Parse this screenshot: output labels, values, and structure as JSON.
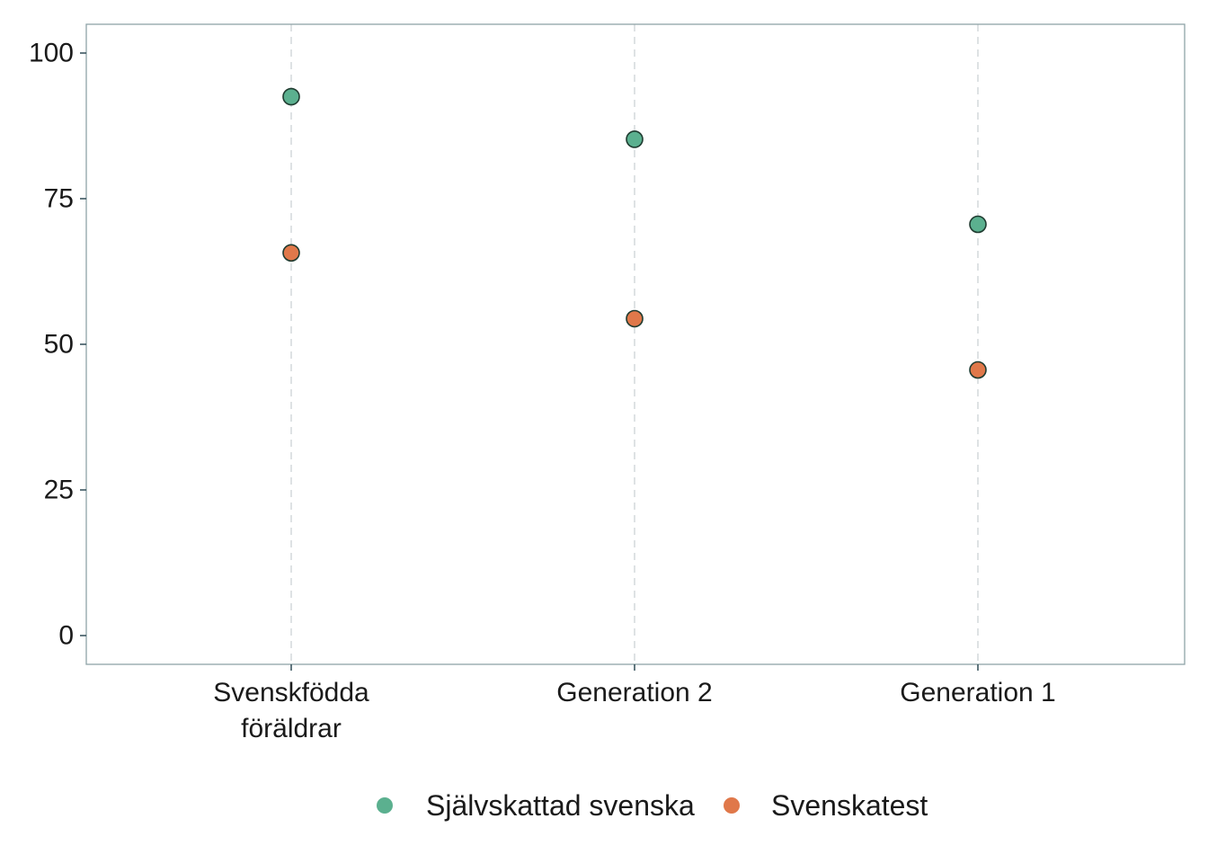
{
  "chart_data": {
    "type": "scatter",
    "title": "",
    "xlabel": "",
    "ylabel": "",
    "categories": [
      [
        "Svenskfödda",
        "föräldrar"
      ],
      [
        "Generation 2"
      ],
      [
        "Generation 1"
      ]
    ],
    "series": [
      {
        "name": "Självskattad svenska",
        "color": "#5bb08f",
        "values": [
          92.5,
          85.2,
          70.6
        ]
      },
      {
        "name": "Svenskatest",
        "color": "#e0784a",
        "values": [
          65.7,
          54.4,
          45.6
        ]
      }
    ],
    "ylim": [
      -5,
      104
    ],
    "yticks": [
      0,
      25,
      50,
      75,
      100
    ],
    "grid": "vertical dashed at categories",
    "legend_position": "bottom",
    "marker_stroke": "#1f3b30"
  }
}
